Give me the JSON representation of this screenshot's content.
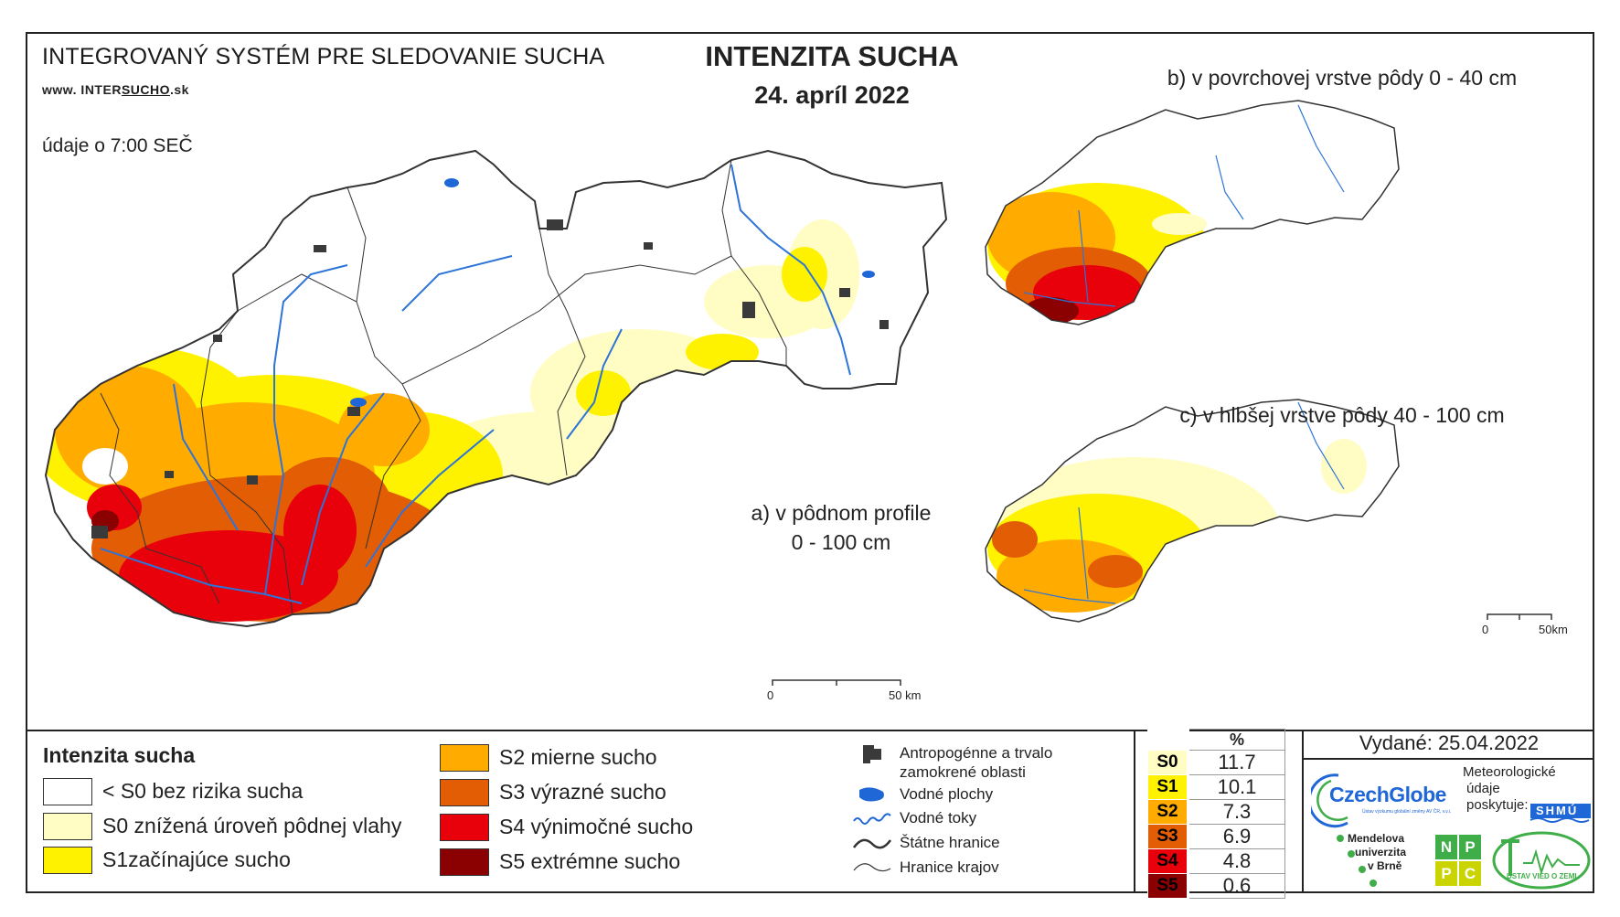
{
  "header": {
    "system_title": "INTEGROVANÝ SYSTÉM PRE SLEDOVANIE SUCHA",
    "website_prefix": "www. INTER",
    "website_underlined": "SUCHO",
    "website_suffix": ".sk",
    "data_time": "údaje o 7:00 SEČ",
    "title": "INTENZITA SUCHA",
    "date": "24. apríl 2022"
  },
  "maps": {
    "a_label_line1": "a) v pôdnom profile",
    "a_label_line2": "0 - 100 cm",
    "b_label": "b) v povrchovej vrstve pôdy 0 - 40 cm",
    "c_label": "c) v hlbšej vrstve pôdy 40 - 100 cm",
    "scale_main_start": "0",
    "scale_main_end": "50 km",
    "scale_small_start": "0",
    "scale_small_end": "50km"
  },
  "colors": {
    "none": "#ffffff",
    "s0": "#fffdc4",
    "s1": "#fff200",
    "s2": "#ffab00",
    "s3": "#e35d05",
    "s4": "#e8000b",
    "s5": "#8b0000",
    "water": "#1f66d6",
    "urban": "#3a3a3a",
    "border": "#222222"
  },
  "legend": {
    "title": "Intenzita sucha",
    "classes": [
      {
        "label": "< S0 bez rizika sucha",
        "color_key": "none"
      },
      {
        "label": "S0 znížená úroveň pôdnej vlahy",
        "color_key": "s0"
      },
      {
        "label": "S1začínajúce sucho",
        "color_key": "s1"
      },
      {
        "label": "S2 mierne sucho",
        "color_key": "s2"
      },
      {
        "label": "S3 výrazné sucho",
        "color_key": "s3"
      },
      {
        "label": "S4 výnimočné sucho",
        "color_key": "s4"
      },
      {
        "label": "S5 extrémne sucho",
        "color_key": "s5"
      }
    ],
    "symbols": [
      {
        "label_line1": "Antropogénne a trvalo",
        "label_line2": "zamokrené oblasti",
        "icon": "urban-area-icon"
      },
      {
        "label": "Vodné plochy",
        "icon": "water-body-icon"
      },
      {
        "label": "Vodné toky",
        "icon": "river-icon"
      },
      {
        "label": "Štátne hranice",
        "icon": "state-border-icon"
      },
      {
        "label": "Hranice krajov",
        "icon": "region-border-icon"
      }
    ]
  },
  "percent_table": {
    "header": "%",
    "rows": [
      {
        "code": "S0",
        "value": "11.7",
        "bg": "#fffdc4",
        "fg": "#000000"
      },
      {
        "code": "S1",
        "value": "10.1",
        "bg": "#fff200",
        "fg": "#000000"
      },
      {
        "code": "S2",
        "value": "7.3",
        "bg": "#ffab00",
        "fg": "#000000"
      },
      {
        "code": "S3",
        "value": "6.9",
        "bg": "#e35d05",
        "fg": "#000000"
      },
      {
        "code": "S4",
        "value": "4.8",
        "bg": "#e8000b",
        "fg": "#000000"
      },
      {
        "code": "S5",
        "value": "0.6",
        "bg": "#8b0000",
        "fg": "#000000"
      }
    ]
  },
  "footer": {
    "issued": "Vydané: 25.04.2022",
    "czechglobe": "CzechGlobe",
    "czechglobe_sub": "Ústav výzkumu globální změny AV ČR, v.v.i.",
    "meteo_line1": "Meteorologické",
    "meteo_line2": "údaje",
    "meteo_line3": "poskytuje:",
    "shmu": "SHMÚ",
    "mendelu_line1": "Mendelova",
    "mendelu_line2": "univerzita",
    "mendelu_line3": "v Brně",
    "nppc": [
      "N",
      "P",
      "P",
      "C"
    ],
    "uvz": "ÚSTAV VIED O ZEMI"
  }
}
